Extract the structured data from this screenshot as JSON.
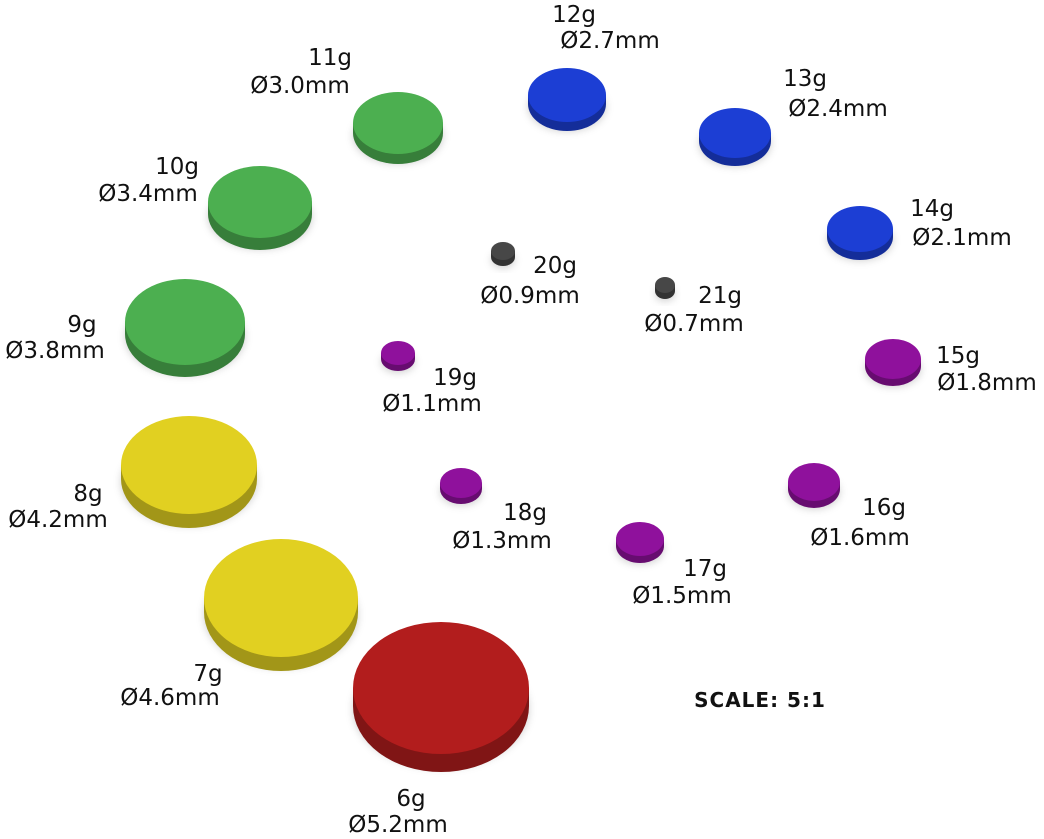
{
  "magnets": [
    {
      "gauge": "6g",
      "diameter": "Ø5.2mm",
      "color": "#b21d1d"
    },
    {
      "gauge": "7g",
      "diameter": "Ø4.6mm",
      "color": "#e1d021"
    },
    {
      "gauge": "8g",
      "diameter": "Ø4.2mm",
      "color": "#e1d021"
    },
    {
      "gauge": "9g",
      "diameter": "Ø3.8mm",
      "color": "#4caf50"
    },
    {
      "gauge": "10g",
      "diameter": "Ø3.4mm",
      "color": "#4caf50"
    },
    {
      "gauge": "11g",
      "diameter": "Ø3.0mm",
      "color": "#4caf50"
    },
    {
      "gauge": "12g",
      "diameter": "Ø2.7mm",
      "color": "#1c3ed4"
    },
    {
      "gauge": "13g",
      "diameter": "Ø2.4mm",
      "color": "#1c3ed4"
    },
    {
      "gauge": "14g",
      "diameter": "Ø2.1mm",
      "color": "#1c3ed4"
    },
    {
      "gauge": "15g",
      "diameter": "Ø1.8mm",
      "color": "#8f119c"
    },
    {
      "gauge": "16g",
      "diameter": "Ø1.6mm",
      "color": "#8f119c"
    },
    {
      "gauge": "17g",
      "diameter": "Ø1.5mm",
      "color": "#8f119c"
    },
    {
      "gauge": "18g",
      "diameter": "Ø1.3mm",
      "color": "#8f119c"
    },
    {
      "gauge": "19g",
      "diameter": "Ø1.1mm",
      "color": "#8f119c"
    },
    {
      "gauge": "20g",
      "diameter": "Ø0.9mm",
      "color": "#474747"
    },
    {
      "gauge": "21g",
      "diameter": "Ø0.7mm",
      "color": "#474747"
    }
  ],
  "scale": "SCALE: 5:1"
}
